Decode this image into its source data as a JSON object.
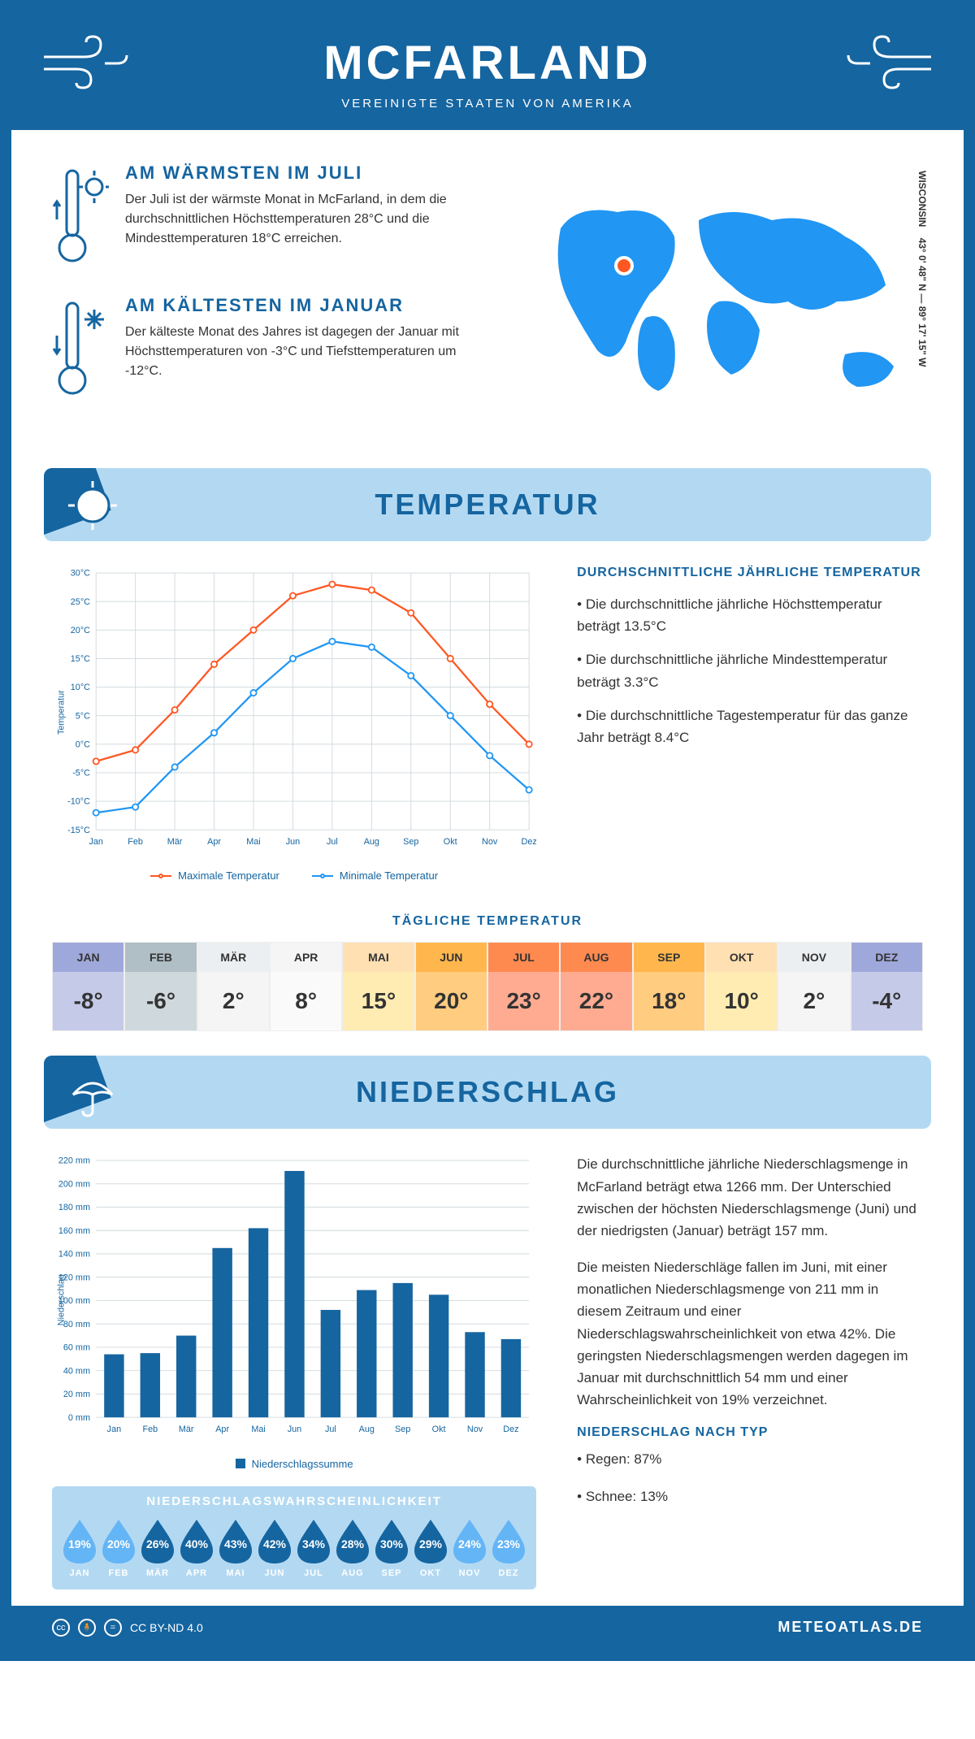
{
  "header": {
    "title": "MCFARLAND",
    "subtitle": "VEREINIGTE STAATEN VON AMERIKA"
  },
  "coords": {
    "lat": "43° 0' 48\" N",
    "lon": "89° 17' 15\" W",
    "region": "WISCONSIN"
  },
  "colors": {
    "brand": "#1565a0",
    "brand_light": "#b3d9f2",
    "accent_blue": "#2196f3",
    "line_max": "#ff5722",
    "line_min": "#2196f3",
    "grid": "#cfd8dc",
    "text": "#333333",
    "bg": "#ffffff"
  },
  "intro": {
    "warm": {
      "title": "AM WÄRMSTEN IM JULI",
      "text": "Der Juli ist der wärmste Monat in McFarland, in dem die durchschnittlichen Höchsttemperaturen 28°C und die Mindesttemperaturen 18°C erreichen."
    },
    "cold": {
      "title": "AM KÄLTESTEN IM JANUAR",
      "text": "Der kälteste Monat des Jahres ist dagegen der Januar mit Höchsttemperaturen von -3°C und Tiefsttemperaturen um -12°C."
    }
  },
  "temperature": {
    "banner": "TEMPERATUR",
    "months": [
      "Jan",
      "Feb",
      "Mär",
      "Apr",
      "Mai",
      "Jun",
      "Jul",
      "Aug",
      "Sep",
      "Okt",
      "Nov",
      "Dez"
    ],
    "max": [
      -3,
      -1,
      6,
      14,
      20,
      26,
      28,
      27,
      23,
      15,
      7,
      0
    ],
    "min": [
      -12,
      -11,
      -4,
      2,
      9,
      15,
      18,
      17,
      12,
      5,
      -2,
      -8
    ],
    "y_min": -15,
    "y_max": 30,
    "y_step": 5,
    "y_unit": "°C",
    "y_axis_label": "Temperatur",
    "legend_max": "Maximale Temperatur",
    "legend_min": "Minimale Temperatur",
    "text_title": "DURCHSCHNITTLICHE JÄHRLICHE TEMPERATUR",
    "bullets": [
      "• Die durchschnittliche jährliche Höchsttemperatur beträgt 13.5°C",
      "• Die durchschnittliche jährliche Mindesttemperatur beträgt 3.3°C",
      "• Die durchschnittliche Tagestemperatur für das ganze Jahr beträgt 8.4°C"
    ],
    "daily_title": "TÄGLICHE TEMPERATUR",
    "daily_values": [
      "-8°",
      "-6°",
      "2°",
      "8°",
      "15°",
      "20°",
      "23°",
      "22°",
      "18°",
      "10°",
      "2°",
      "-4°"
    ],
    "daily_header_colors": [
      "#9fa8da",
      "#b0bec5",
      "#eceff1",
      "#f5f5f5",
      "#ffe0b2",
      "#ffb74d",
      "#ff8a50",
      "#ff8a50",
      "#ffb74d",
      "#ffe0b2",
      "#eceff1",
      "#9fa8da"
    ],
    "daily_value_colors": [
      "#c5cae9",
      "#cfd8dc",
      "#f5f5f5",
      "#fafafa",
      "#ffecb3",
      "#ffcc80",
      "#ffab91",
      "#ffab91",
      "#ffcc80",
      "#ffecb3",
      "#f5f5f5",
      "#c5cae9"
    ]
  },
  "precip": {
    "banner": "NIEDERSCHLAG",
    "y_max": 220,
    "y_step": 20,
    "y_unit": " mm",
    "y_axis_label": "Niederschlag",
    "values": [
      54,
      55,
      70,
      145,
      162,
      211,
      92,
      109,
      115,
      105,
      73,
      67
    ],
    "legend": "Niederschlagssumme",
    "text1": "Die durchschnittliche jährliche Niederschlagsmenge in McFarland beträgt etwa 1266 mm. Der Unterschied zwischen der höchsten Niederschlagsmenge (Juni) und der niedrigsten (Januar) beträgt 157 mm.",
    "text2": "Die meisten Niederschläge fallen im Juni, mit einer monatlichen Niederschlagsmenge von 211 mm in diesem Zeitraum und einer Niederschlagswahrscheinlichkeit von etwa 42%. Die geringsten Niederschlagsmengen werden dagegen im Januar mit durchschnittlich 54 mm und einer Wahrscheinlichkeit von 19% verzeichnet.",
    "prob_title": "NIEDERSCHLAGSWAHRSCHEINLICHKEIT",
    "prob": [
      19,
      20,
      26,
      40,
      43,
      42,
      34,
      28,
      30,
      29,
      24,
      23
    ],
    "prob_colors": [
      "#64b5f6",
      "#64b5f6",
      "#1565a0",
      "#1565a0",
      "#1565a0",
      "#1565a0",
      "#1565a0",
      "#1565a0",
      "#1565a0",
      "#1565a0",
      "#64b5f6",
      "#64b5f6"
    ],
    "type_title": "NIEDERSCHLAG NACH TYP",
    "types": [
      "• Regen: 87%",
      "• Schnee: 13%"
    ]
  },
  "footer": {
    "license": "CC BY-ND 4.0",
    "site": "METEOATLAS.DE"
  }
}
